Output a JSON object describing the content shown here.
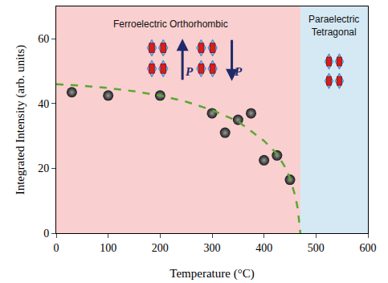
{
  "chart_data": {
    "type": "scatter",
    "x_label": "Temperature (°C)",
    "y_label": "Integrated Intensity (arb. units)",
    "xlim": [
      0,
      600
    ],
    "xticks": [
      0,
      100,
      200,
      300,
      400,
      500,
      600
    ],
    "ylim": [
      0,
      70
    ],
    "yticks": [
      0,
      20,
      40,
      60
    ],
    "grid": false,
    "series": [
      {
        "type": "scatter",
        "color": "#1a1a1a",
        "marker": "circle",
        "x": [
          30,
          100,
          200,
          300,
          325,
          350,
          375,
          400,
          425,
          450
        ],
        "values": [
          43.5,
          42.5,
          42.5,
          37,
          31,
          35,
          37,
          22.5,
          24,
          16.5
        ]
      },
      {
        "type": "line",
        "color": "#5aa832",
        "line_style": "dash",
        "x": [
          0,
          50,
          100,
          150,
          200,
          250,
          300,
          350,
          400,
          425,
          440,
          450,
          460,
          465,
          470
        ],
        "values": [
          46,
          45.5,
          44.8,
          43.8,
          42.5,
          40.6,
          38,
          34.5,
          28.5,
          24.5,
          20.5,
          17,
          11.5,
          7.5,
          0
        ]
      }
    ],
    "regions": [
      {
        "label": [
          "Ferroelectric Orthorhombic"
        ],
        "from": 0,
        "to": 470,
        "color": "#f9cfcf"
      },
      {
        "label": [
          "Paraelectric",
          "Tetragonal"
        ],
        "from": 470,
        "to": 600,
        "color": "#d5e9f5"
      }
    ],
    "polarization_labels": [
      "P",
      "P"
    ]
  }
}
